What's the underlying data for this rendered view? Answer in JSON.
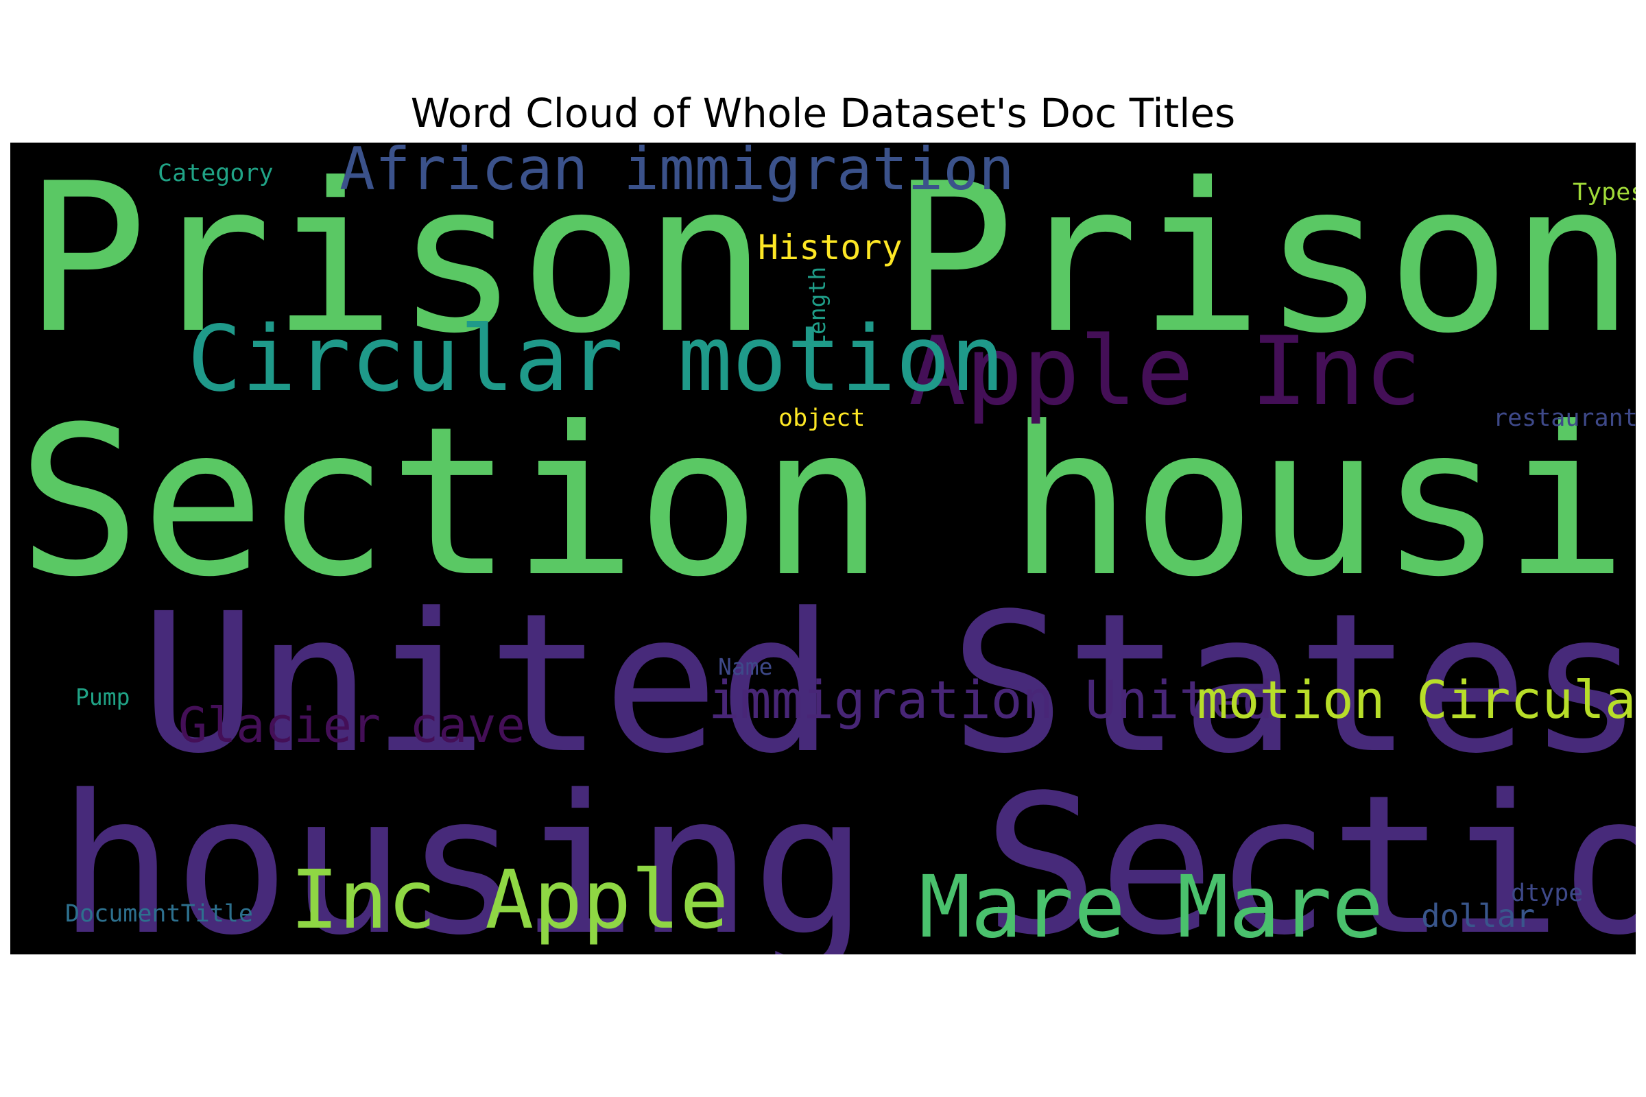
{
  "chart_data": {
    "type": "wordcloud",
    "title": "Word Cloud of Whole Dataset's Doc Titles",
    "background": "#000000",
    "words": [
      {
        "text": "Prison Prison",
        "color": "#5ac864",
        "weight": 1.0
      },
      {
        "text": "Section housing",
        "color": "#5ac864",
        "weight": 0.98
      },
      {
        "text": "United States",
        "color": "#472a7a",
        "weight": 0.94
      },
      {
        "text": "housing Section",
        "color": "#472a7a",
        "weight": 0.94
      },
      {
        "text": "Apple Inc",
        "color": "#440f57",
        "weight": 0.46
      },
      {
        "text": "Circular motion",
        "color": "#1f9a8a",
        "weight": 0.44
      },
      {
        "text": "Mare Mare",
        "color": "#4ac16d",
        "weight": 0.42
      },
      {
        "text": "Inc Apple",
        "color": "#8fd744",
        "weight": 0.4
      },
      {
        "text": "African immigration",
        "color": "#3b528b",
        "weight": 0.3
      },
      {
        "text": "immigration United",
        "color": "#482677",
        "weight": 0.27
      },
      {
        "text": "motion Circular",
        "color": "#b8de29",
        "weight": 0.27
      },
      {
        "text": "Glacier cave",
        "color": "#440f57",
        "weight": 0.24
      },
      {
        "text": "History",
        "color": "#fde725",
        "weight": 0.17
      },
      {
        "text": "dollar",
        "color": "#39568c",
        "weight": 0.15
      },
      {
        "text": "Types",
        "color": "#a0da39",
        "weight": 0.12
      },
      {
        "text": "restaurants",
        "color": "#3e4989",
        "weight": 0.12
      },
      {
        "text": "object",
        "color": "#fde725",
        "weight": 0.12
      },
      {
        "text": "Category",
        "color": "#20a386",
        "weight": 0.12
      },
      {
        "text": "DocumentTitle",
        "color": "#2d708e",
        "weight": 0.12
      },
      {
        "text": "dtype",
        "color": "#3e4989",
        "weight": 0.12
      },
      {
        "text": "Pump",
        "color": "#20a386",
        "weight": 0.11
      },
      {
        "text": "Name",
        "color": "#3e4989",
        "weight": 0.11
      },
      {
        "text": "Length",
        "color": "#1f9e89",
        "weight": 0.11
      }
    ]
  }
}
